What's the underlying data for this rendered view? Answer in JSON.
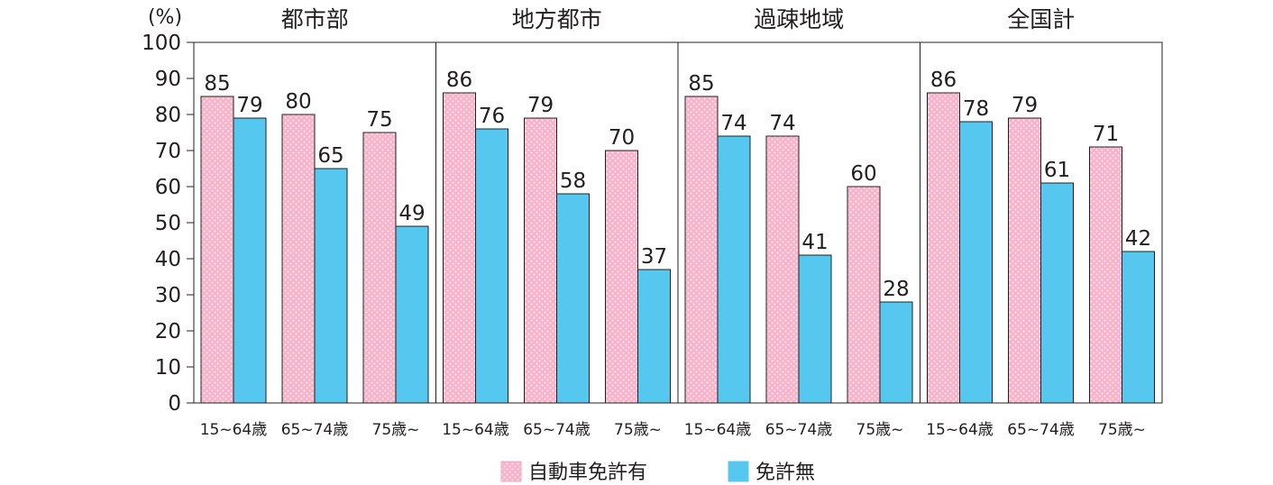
{
  "chart_data": {
    "type": "bar",
    "y_unit": "(%)",
    "ylim": [
      0,
      100
    ],
    "yticks": [
      0,
      10,
      20,
      30,
      40,
      50,
      60,
      70,
      80,
      90,
      100
    ],
    "grid": false,
    "legend_position": "bottom",
    "categories": [
      "15~64歳",
      "65~74歳",
      "75歳~"
    ],
    "series_colors": [
      "#f6b8cb",
      "#56c8ef"
    ],
    "legend": [
      "自動車免許有",
      "免許無"
    ],
    "panels": [
      {
        "title": "都市部",
        "series": [
          {
            "values": [
              85,
              80,
              75
            ]
          },
          {
            "values": [
              79,
              65,
              49
            ]
          }
        ]
      },
      {
        "title": "地方都市",
        "series": [
          {
            "values": [
              86,
              79,
              70
            ]
          },
          {
            "values": [
              76,
              58,
              37
            ]
          }
        ]
      },
      {
        "title": "過疎地域",
        "series": [
          {
            "values": [
              85,
              74,
              60
            ]
          },
          {
            "values": [
              74,
              41,
              28
            ]
          }
        ]
      },
      {
        "title": "全国計",
        "series": [
          {
            "values": [
              86,
              79,
              71
            ]
          },
          {
            "values": [
              78,
              61,
              42
            ]
          }
        ]
      }
    ]
  }
}
